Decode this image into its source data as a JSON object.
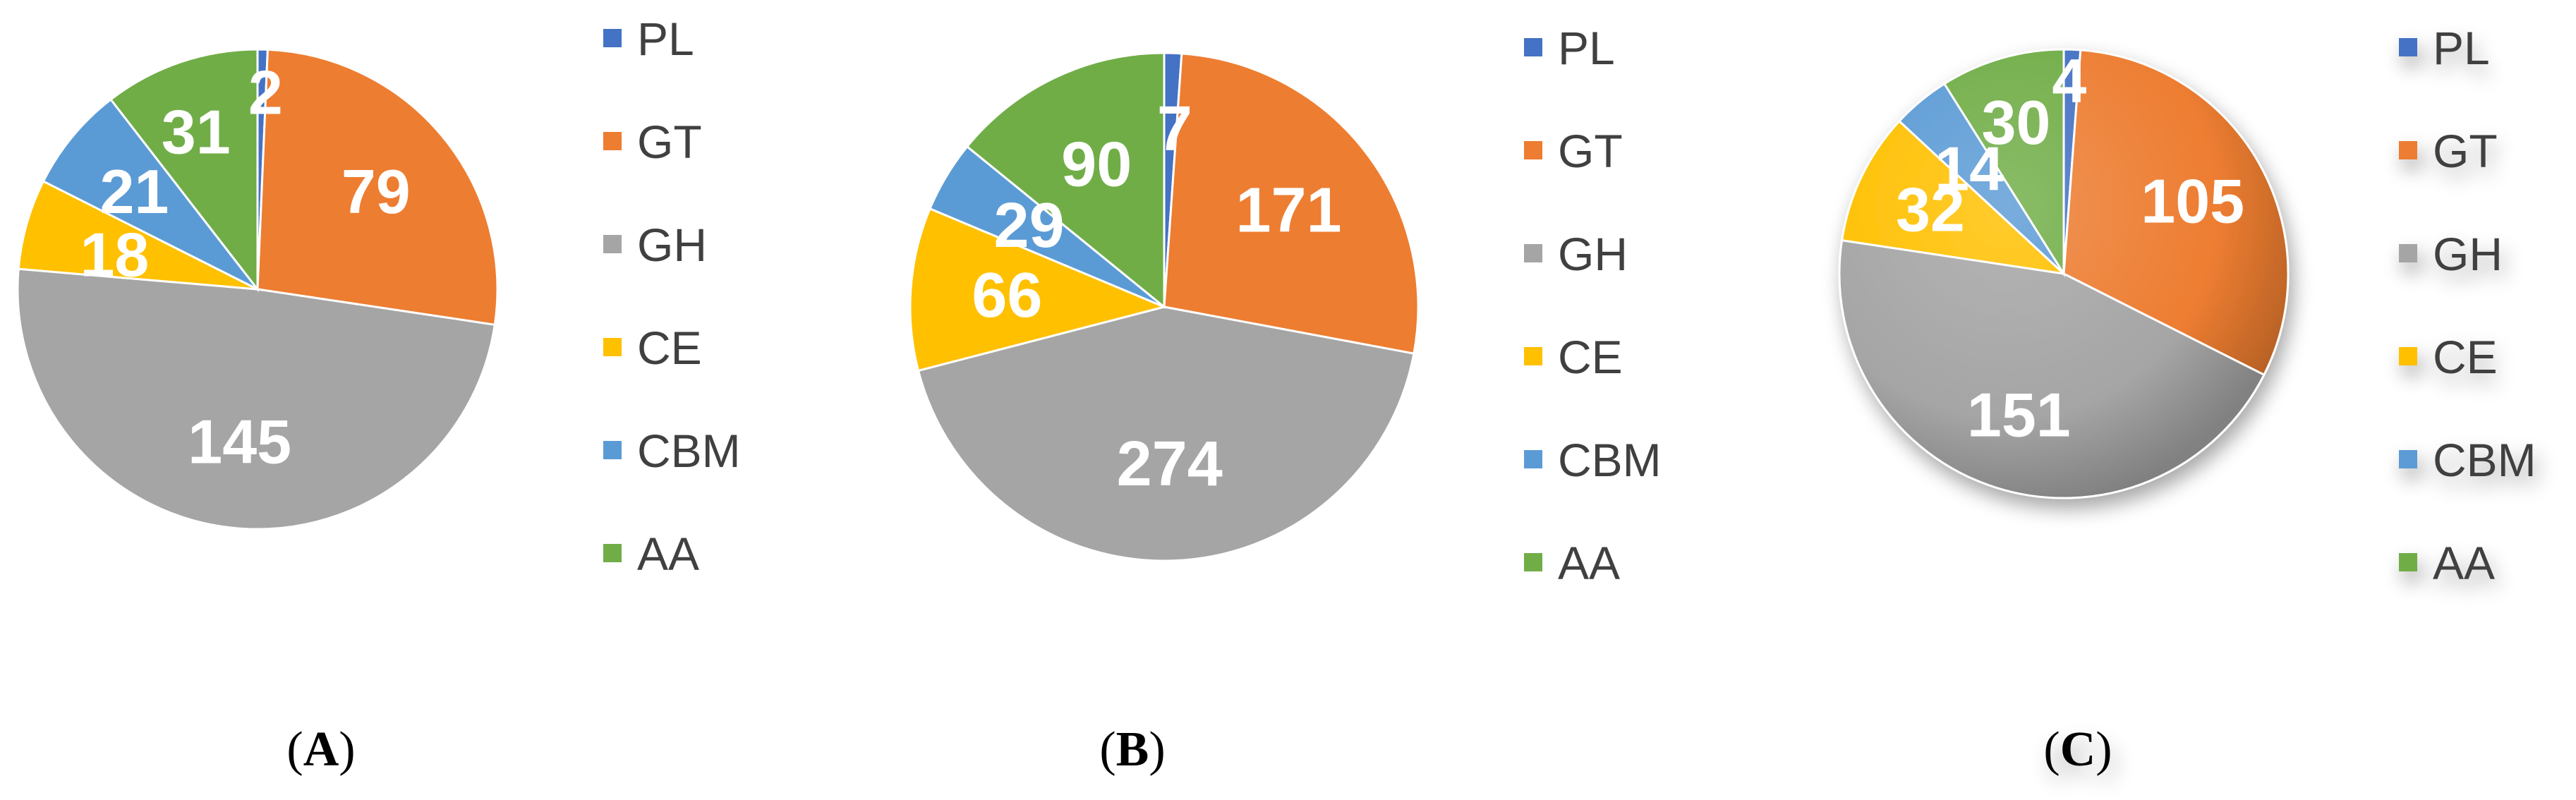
{
  "colors": {
    "PL": "#4472C4",
    "GT": "#ED7D31",
    "GH": "#A5A5A5",
    "CE": "#FFC000",
    "CBM": "#5B9BD5",
    "AA": "#70AD47"
  },
  "chart_data": [
    {
      "type": "pie",
      "panel_label": "A",
      "categories": [
        "PL",
        "GT",
        "GH",
        "CE",
        "CBM",
        "AA"
      ],
      "values": [
        2,
        79,
        145,
        18,
        21,
        31
      ],
      "legend": [
        "PL",
        "GT",
        "GH",
        "CE",
        "CBM",
        "AA"
      ],
      "legend_position": "right",
      "data_labels": true
    },
    {
      "type": "pie",
      "panel_label": "B",
      "categories": [
        "PL",
        "GT",
        "GH",
        "CE",
        "CBM",
        "AA"
      ],
      "values": [
        7,
        171,
        274,
        66,
        29,
        90
      ],
      "legend": [
        "PL",
        "GT",
        "GH",
        "CE",
        "CBM",
        "AA"
      ],
      "legend_position": "right",
      "data_labels": true
    },
    {
      "type": "pie",
      "panel_label": "C",
      "categories": [
        "PL",
        "GT",
        "GH",
        "CE",
        "CBM",
        "AA"
      ],
      "values": [
        4,
        105,
        151,
        32,
        14,
        30
      ],
      "legend": [
        "PL",
        "GT",
        "GH",
        "CE",
        "CBM",
        "AA"
      ],
      "legend_position": "right",
      "data_labels": true,
      "style": "3d-shaded"
    }
  ]
}
